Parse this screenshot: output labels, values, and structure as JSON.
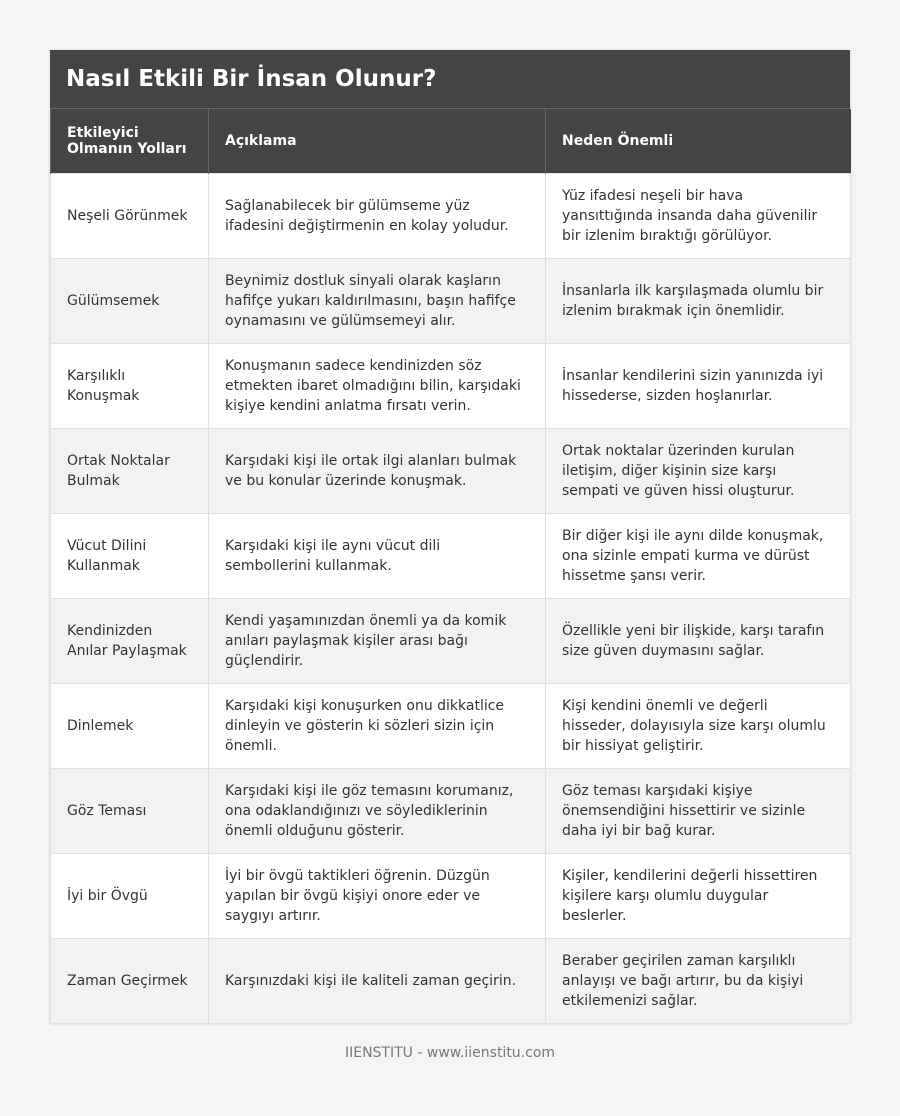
{
  "title": "Nasıl Etkili Bir İnsan Olunur?",
  "table": {
    "headers": [
      "Etkileyici Olmanın Yolları",
      "Açıklama",
      "Neden Önemli"
    ],
    "rows": [
      [
        "Neşeli Görünmek",
        "Sağlanabilecek bir gülümseme yüz ifadesini değiştirmenin en kolay yoludur.",
        "Yüz ifadesi neşeli bir hava yansıttığında insanda daha güvenilir bir izlenim bıraktığı görülüyor."
      ],
      [
        "Gülümsemek",
        "Beynimiz dostluk sinyali olarak kaşların hafifçe yukarı kaldırılmasını, başın hafifçe oynamasını ve gülümsemeyi alır.",
        "İnsanlarla ilk karşılaşmada olumlu bir izlenim bırakmak için önemlidir."
      ],
      [
        "Karşılıklı Konuşmak",
        "Konuşmanın sadece kendinizden söz etmekten ibaret olmadığını bilin, karşıdaki kişiye kendini anlatma fırsatı verin.",
        "İnsanlar kendilerini sizin yanınızda iyi hissederse, sizden hoşlanırlar."
      ],
      [
        "Ortak Noktalar Bulmak",
        "Karşıdaki kişi ile ortak ilgi alanları bulmak ve bu konular üzerinde konuşmak.",
        "Ortak noktalar üzerinden kurulan iletişim, diğer kişinin size karşı sempati ve güven hissi oluşturur."
      ],
      [
        "Vücut Dilini Kullanmak",
        "Karşıdaki kişi ile aynı vücut dili sembollerini kullanmak.",
        "Bir diğer kişi ile aynı dilde konuşmak, ona sizinle empati kurma ve dürüst hissetme şansı verir."
      ],
      [
        "Kendinizden Anılar Paylaşmak",
        "Kendi yaşamınızdan önemli ya da komik anıları paylaşmak kişiler arası bağı güçlendirir.",
        "Özellikle yeni bir ilişkide, karşı tarafın size güven duymasını sağlar."
      ],
      [
        "Dinlemek",
        "Karşıdaki kişi konuşurken onu dikkatlice dinleyin ve gösterin ki sözleri sizin için önemli.",
        "Kişi kendini önemli ve değerli hisseder, dolayısıyla size karşı olumlu bir hissiyat geliştirir."
      ],
      [
        "Göz Teması",
        "Karşıdaki kişi ile göz temasını korumanız, ona odaklandığınızı ve söylediklerinin önemli olduğunu gösterir.",
        "Göz teması karşıdaki kişiye önemsendiğini hissettirir ve sizinle daha iyi bir bağ kurar."
      ],
      [
        "İyi bir Övgü",
        "İyi bir övgü taktikleri öğrenin. Düzgün yapılan bir övgü kişiyi onore eder ve saygıyı artırır.",
        "Kişiler, kendilerini değerli hissettiren kişilere karşı olumlu duygular beslerler."
      ],
      [
        "Zaman Geçirmek",
        "Karşınızdaki kişi ile kaliteli zaman geçirin.",
        "Beraber geçirilen zaman karşılıklı anlayışı ve bağı artırır, bu da kişiyi etkilemenizi sağlar."
      ]
    ]
  },
  "footer": "IIENSTITU - www.iienstitu.com"
}
